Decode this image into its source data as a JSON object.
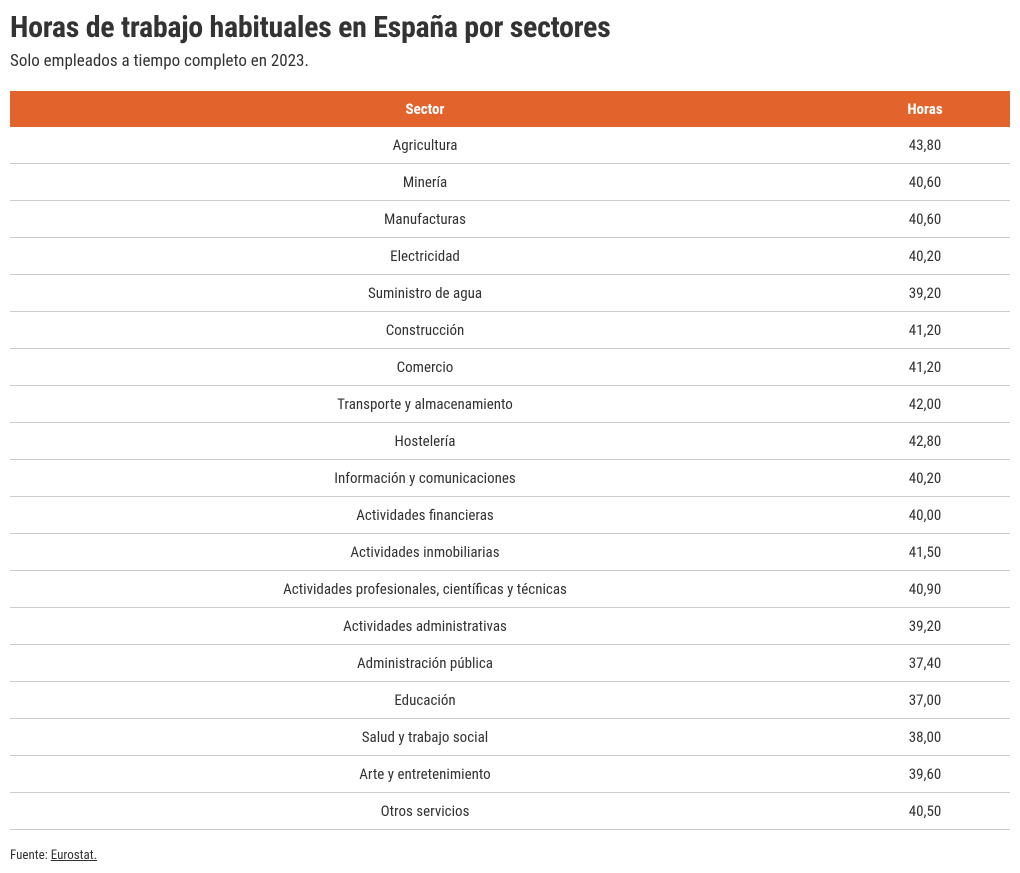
{
  "page": {
    "title": "Horas de trabajo habituales en España por sectores",
    "subtitle": "Solo empleados a tiempo completo en 2023."
  },
  "table": {
    "type": "table",
    "header_bg": "#e2632b",
    "header_fg": "#ffffff",
    "row_border_color": "#cccccc",
    "text_color": "#333333",
    "title_fontsize": 30,
    "subtitle_fontsize": 17,
    "header_fontsize": 15,
    "cell_fontsize": 15,
    "columns": [
      {
        "key": "sector",
        "label": "Sector",
        "width_pct": 83,
        "align": "center"
      },
      {
        "key": "horas",
        "label": "Horas",
        "width_pct": 17,
        "align": "center"
      }
    ],
    "rows": [
      {
        "sector": "Agricultura",
        "horas": "43,80"
      },
      {
        "sector": "Minería",
        "horas": "40,60"
      },
      {
        "sector": "Manufacturas",
        "horas": "40,60"
      },
      {
        "sector": "Electricidad",
        "horas": "40,20"
      },
      {
        "sector": "Suministro de agua",
        "horas": "39,20"
      },
      {
        "sector": "Construcción",
        "horas": "41,20"
      },
      {
        "sector": "Comercio",
        "horas": "41,20"
      },
      {
        "sector": "Transporte y almacenamiento",
        "horas": "42,00"
      },
      {
        "sector": "Hostelería",
        "horas": "42,80"
      },
      {
        "sector": "Información y comunicaciones",
        "horas": "40,20"
      },
      {
        "sector": "Actividades financieras",
        "horas": "40,00"
      },
      {
        "sector": "Actividades inmobiliarias",
        "horas": "41,50"
      },
      {
        "sector": "Actividades profesionales, científicas y técnicas",
        "horas": "40,90"
      },
      {
        "sector": "Actividades administrativas",
        "horas": "39,20"
      },
      {
        "sector": "Administración pública",
        "horas": "37,40"
      },
      {
        "sector": "Educación",
        "horas": "37,00"
      },
      {
        "sector": "Salud y trabajo social",
        "horas": "38,00"
      },
      {
        "sector": "Arte y entretenimiento",
        "horas": "39,60"
      },
      {
        "sector": "Otros servicios",
        "horas": "40,50"
      }
    ]
  },
  "source": {
    "prefix": "Fuente: ",
    "link_text": "Eurostat."
  }
}
